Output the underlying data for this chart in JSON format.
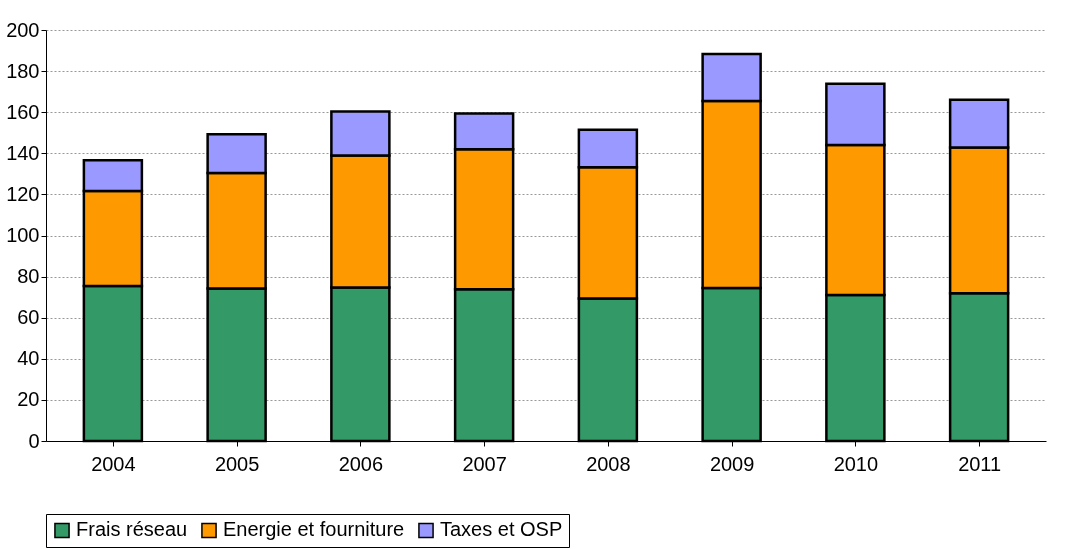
{
  "chart_data": {
    "type": "bar",
    "stacked": true,
    "categories": [
      "2004",
      "2005",
      "2006",
      "2007",
      "2008",
      "2009",
      "2010",
      "2011"
    ],
    "series": [
      {
        "name": "Frais réseau",
        "color": "#339966",
        "values": [
          75.4,
          74.2,
          74.7,
          73.8,
          69.4,
          74.5,
          71.1,
          71.9
        ]
      },
      {
        "name": "Energie et fourniture",
        "color": "#ff9900",
        "values": [
          46.3,
          56.2,
          64.2,
          68.2,
          63.8,
          90.9,
          72.9,
          70.9
        ]
      },
      {
        "name": "Taxes et OSP",
        "color": "#9999ff",
        "values": [
          14.9,
          18.9,
          21.4,
          17.4,
          18.3,
          22.9,
          29.9,
          23.3
        ]
      }
    ],
    "ylim": [
      0,
      200
    ],
    "yticks": [
      0,
      20,
      40,
      60,
      80,
      100,
      120,
      140,
      160,
      180,
      200
    ],
    "grid": "y",
    "legend": "bottom"
  }
}
